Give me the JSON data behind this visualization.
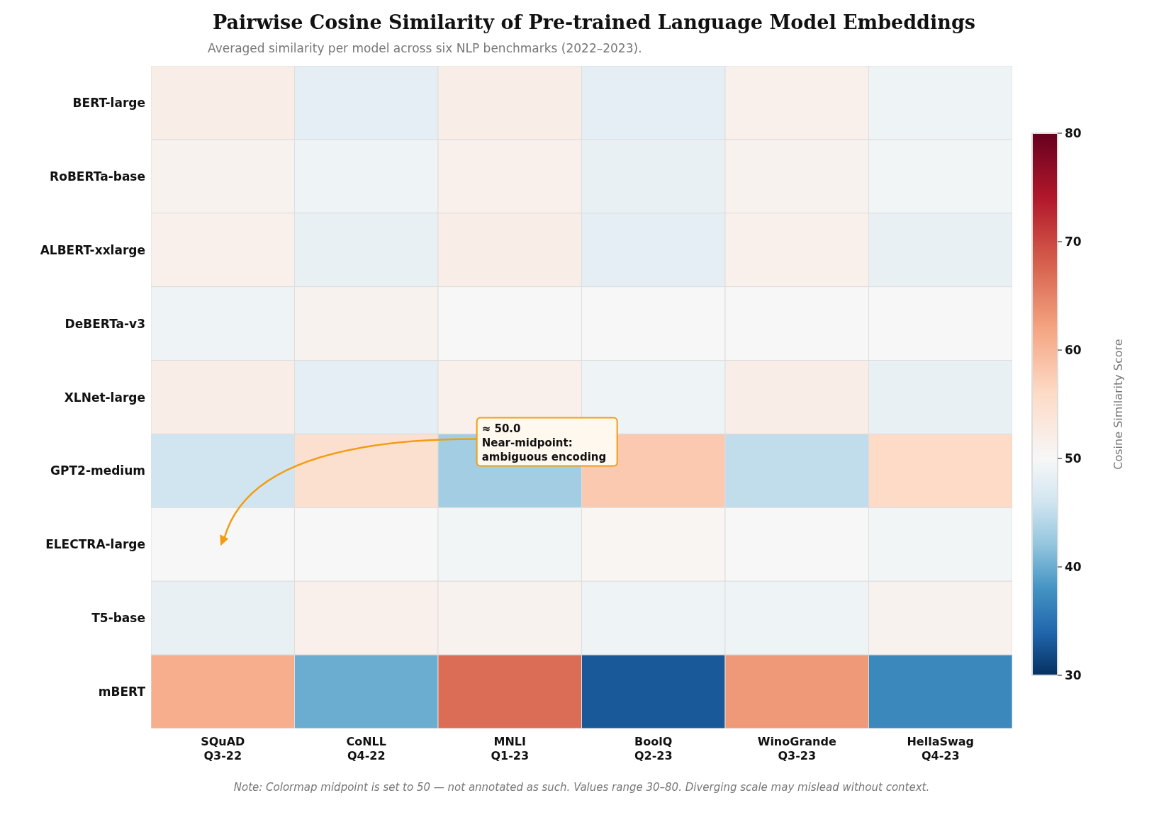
{
  "chart_data": {
    "type": "heatmap",
    "title": "Pairwise Cosine Similarity of Pre-trained Language Model Embeddings",
    "subtitle": "Averaged similarity per model across six NLP benchmarks (2022–2023).",
    "clabel": "Cosine Similarity Score",
    "categories": [
      "SQuAD\nQ3-22",
      "CoNLL\nQ4-22",
      "MNLI\nQ1-23",
      "BoolQ\nQ2-23",
      "WinoGrande\nQ3-23",
      "HellaSwag\nQ4-23"
    ],
    "y_categories": [
      "BERT-large",
      "RoBERTa-base",
      "ALBERT-xxlarge",
      "DeBERTa-v3",
      "XLNet-large",
      "GPT2-medium",
      "ELECTRA-large",
      "T5-base",
      "mBERT"
    ],
    "cells": [
      [
        52,
        48,
        52,
        48,
        51.5,
        49
      ],
      [
        51,
        49,
        51.5,
        48.5,
        51,
        49.5
      ],
      [
        51.5,
        48.5,
        52,
        48,
        51.5,
        48.5
      ],
      [
        49,
        51,
        50,
        50,
        50,
        50
      ],
      [
        52,
        48,
        51.5,
        49,
        52,
        48.5
      ],
      [
        46,
        55,
        43,
        58,
        45,
        56
      ],
      [
        50,
        50,
        49.5,
        50.5,
        50,
        49.5
      ],
      [
        48.5,
        51.5,
        51,
        49,
        49,
        51
      ],
      [
        61,
        40,
        67,
        33,
        63,
        37
      ]
    ],
    "clim": [
      30,
      80
    ],
    "cticks": [
      30,
      40,
      50,
      60,
      70,
      80
    ],
    "annotations": [
      "≈ 50.0\nNear-midpoint:\nambiguous encoding",
      "Note: Colormap midpoint is set to 50 — not annotated as such. Values range 30–80. Diverging scale may mislead without context."
    ]
  }
}
